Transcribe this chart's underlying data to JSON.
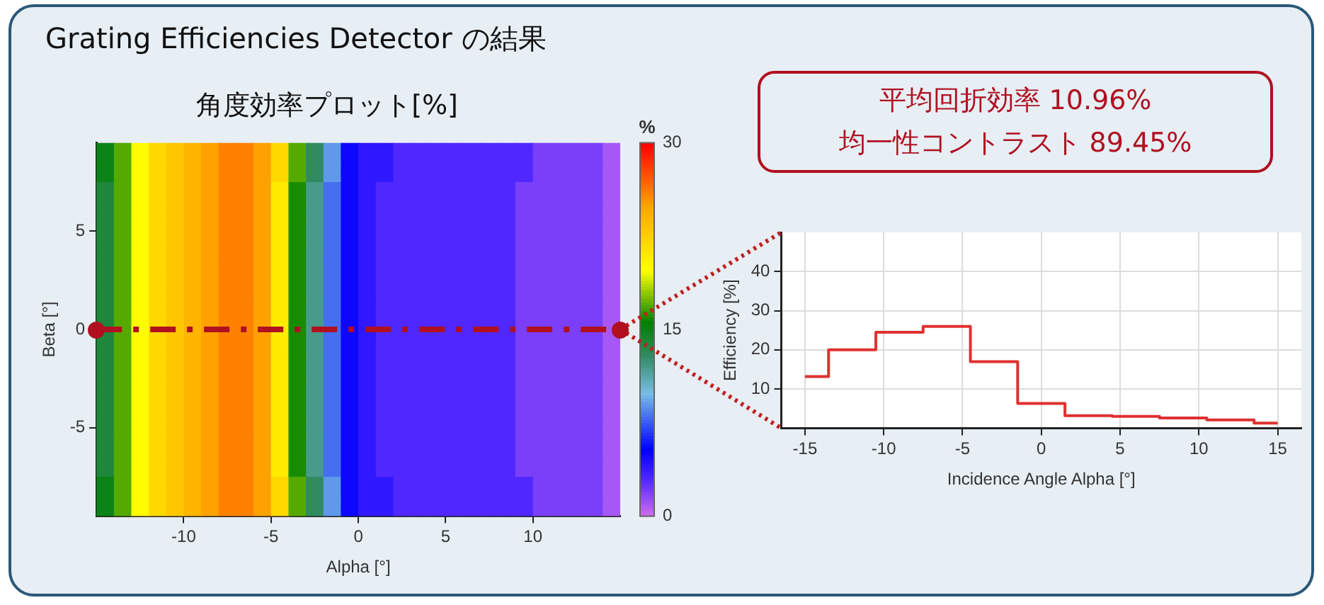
{
  "chart_data": [
    {
      "type": "other",
      "title": "Grating Efficiencies Detector の結果",
      "annotations": [
        "平均回折効率 10.96%",
        "均一性コントラスト  89.45%"
      ]
    },
    {
      "type": "heatmap",
      "title": "角度効率プロット[%]",
      "xlabel": "Alpha [°]",
      "ylabel": "Beta [°]",
      "clabel": "%",
      "x": [
        -14.5,
        -13.5,
        -12.5,
        -11.5,
        -10.5,
        -9.5,
        -8.5,
        -7.5,
        -6.5,
        -5.5,
        -4.5,
        -3.5,
        -2.5,
        -1.5,
        -0.5,
        0.5,
        1.5,
        2.5,
        3.5,
        4.5,
        5.5,
        6.5,
        7.5,
        8.5,
        9.5,
        10.5,
        11.5,
        12.5,
        13.5,
        14.5
      ],
      "y": [
        9,
        8,
        7,
        6,
        5,
        4,
        3,
        2,
        1,
        0,
        -1,
        -2,
        -3,
        -4,
        -5,
        -6,
        -7,
        -8,
        -9
      ],
      "cells": [
        [
          15,
          17,
          20,
          22,
          23,
          24,
          25,
          26,
          26,
          25,
          22,
          17,
          13,
          9,
          5,
          4,
          4,
          3,
          3,
          3,
          3,
          3,
          3,
          3,
          3,
          2,
          2,
          2,
          2,
          1
        ],
        [
          15,
          17,
          20,
          22,
          23,
          24,
          25,
          26,
          26,
          25,
          22,
          17,
          13,
          9,
          5,
          4,
          4,
          3,
          3,
          3,
          3,
          3,
          3,
          3,
          3,
          2,
          2,
          2,
          2,
          1
        ],
        [
          14,
          17,
          20,
          22,
          23,
          24,
          25,
          26,
          26,
          25,
          21,
          16,
          12,
          8,
          5,
          4,
          3,
          3,
          3,
          3,
          3,
          3,
          3,
          3,
          2,
          2,
          2,
          2,
          2,
          1
        ],
        [
          14,
          17,
          20,
          22,
          23,
          24,
          25,
          26,
          26,
          25,
          21,
          16,
          12,
          8,
          5,
          4,
          3,
          3,
          3,
          3,
          3,
          3,
          3,
          3,
          2,
          2,
          2,
          2,
          2,
          1
        ],
        [
          14,
          17,
          20,
          22,
          23,
          24,
          25,
          26,
          26,
          25,
          21,
          16,
          12,
          8,
          5,
          4,
          3,
          3,
          3,
          3,
          3,
          3,
          3,
          3,
          2,
          2,
          2,
          2,
          2,
          1
        ],
        [
          14,
          17,
          20,
          22,
          23,
          24,
          25,
          26,
          26,
          25,
          21,
          16,
          12,
          8,
          5,
          4,
          3,
          3,
          3,
          3,
          3,
          3,
          3,
          3,
          2,
          2,
          2,
          2,
          2,
          1
        ],
        [
          14,
          17,
          20,
          22,
          23,
          24,
          25,
          26,
          26,
          25,
          21,
          16,
          12,
          8,
          5,
          4,
          3,
          3,
          3,
          3,
          3,
          3,
          3,
          3,
          2,
          2,
          2,
          2,
          2,
          1
        ],
        [
          14,
          17,
          20,
          22,
          23,
          24,
          25,
          26,
          26,
          25,
          21,
          16,
          12,
          8,
          5,
          4,
          3,
          3,
          3,
          3,
          3,
          3,
          3,
          3,
          2,
          2,
          2,
          2,
          2,
          1
        ],
        [
          14,
          17,
          20,
          22,
          23,
          24,
          25,
          26,
          26,
          25,
          21,
          16,
          12,
          8,
          5,
          4,
          3,
          3,
          3,
          3,
          3,
          3,
          3,
          3,
          2,
          2,
          2,
          2,
          2,
          1
        ],
        [
          14,
          17,
          20,
          22,
          23,
          24,
          25,
          26,
          26,
          25,
          21,
          16,
          12,
          8,
          5,
          4,
          3,
          3,
          3,
          3,
          3,
          3,
          3,
          3,
          2,
          2,
          2,
          2,
          2,
          1
        ],
        [
          14,
          17,
          20,
          22,
          23,
          24,
          25,
          26,
          26,
          25,
          21,
          16,
          12,
          8,
          5,
          4,
          3,
          3,
          3,
          3,
          3,
          3,
          3,
          3,
          2,
          2,
          2,
          2,
          2,
          1
        ],
        [
          14,
          17,
          20,
          22,
          23,
          24,
          25,
          26,
          26,
          25,
          21,
          16,
          12,
          8,
          5,
          4,
          3,
          3,
          3,
          3,
          3,
          3,
          3,
          3,
          2,
          2,
          2,
          2,
          2,
          1
        ],
        [
          14,
          17,
          20,
          22,
          23,
          24,
          25,
          26,
          26,
          25,
          21,
          16,
          12,
          8,
          5,
          4,
          3,
          3,
          3,
          3,
          3,
          3,
          3,
          3,
          2,
          2,
          2,
          2,
          2,
          1
        ],
        [
          14,
          17,
          20,
          22,
          23,
          24,
          25,
          26,
          26,
          25,
          21,
          16,
          12,
          8,
          5,
          4,
          3,
          3,
          3,
          3,
          3,
          3,
          3,
          3,
          2,
          2,
          2,
          2,
          2,
          1
        ],
        [
          14,
          17,
          20,
          22,
          23,
          24,
          25,
          26,
          26,
          25,
          21,
          16,
          12,
          8,
          5,
          4,
          3,
          3,
          3,
          3,
          3,
          3,
          3,
          3,
          2,
          2,
          2,
          2,
          2,
          1
        ],
        [
          14,
          17,
          20,
          22,
          23,
          24,
          25,
          26,
          26,
          25,
          21,
          16,
          12,
          8,
          5,
          4,
          3,
          3,
          3,
          3,
          3,
          3,
          3,
          3,
          2,
          2,
          2,
          2,
          2,
          1
        ],
        [
          14,
          17,
          20,
          22,
          23,
          24,
          25,
          26,
          26,
          25,
          21,
          16,
          12,
          8,
          5,
          4,
          3,
          3,
          3,
          3,
          3,
          3,
          3,
          3,
          2,
          2,
          2,
          2,
          2,
          1
        ],
        [
          15,
          17,
          20,
          22,
          23,
          24,
          25,
          26,
          26,
          25,
          22,
          17,
          13,
          9,
          5,
          4,
          4,
          3,
          3,
          3,
          3,
          3,
          3,
          3,
          3,
          2,
          2,
          2,
          2,
          1
        ],
        [
          15,
          17,
          20,
          22,
          23,
          24,
          25,
          26,
          26,
          25,
          22,
          17,
          13,
          9,
          5,
          4,
          4,
          3,
          3,
          3,
          3,
          3,
          3,
          3,
          3,
          2,
          2,
          2,
          2,
          1
        ]
      ],
      "xlim": [
        -15,
        15
      ],
      "xticks": [
        -10,
        -5,
        0,
        5,
        10
      ],
      "ylim": [
        -9.5,
        9.5
      ],
      "yticks": [
        -5,
        0,
        5
      ],
      "clim": [
        0,
        30
      ],
      "cticks": [
        0,
        15,
        30
      ],
      "ref_lines": [
        {
          "axis": "y",
          "value": 0,
          "color": "#b01020",
          "line_style": "dashed"
        }
      ]
    },
    {
      "type": "step",
      "xlabel": "Incidence Angle Alpha [°]",
      "ylabel": "Efficiency [%]",
      "x": [
        -15,
        -12,
        -9,
        -6,
        -3,
        0,
        3,
        6,
        9,
        12,
        15
      ],
      "series": [
        {
          "color": "#e03030",
          "values": [
            13.2,
            20,
            24.5,
            26,
            17,
            6.3,
            3.2,
            3,
            2.6,
            2.1,
            1.3
          ]
        }
      ],
      "xlim": [
        -16.5,
        16.5
      ],
      "xticks": [
        -15,
        -10,
        -5,
        0,
        5,
        10,
        15
      ],
      "ylim": [
        0,
        50
      ],
      "yticks": [
        10,
        20,
        30,
        40
      ],
      "grid": true,
      "marker": "none",
      "legend": false
    }
  ]
}
